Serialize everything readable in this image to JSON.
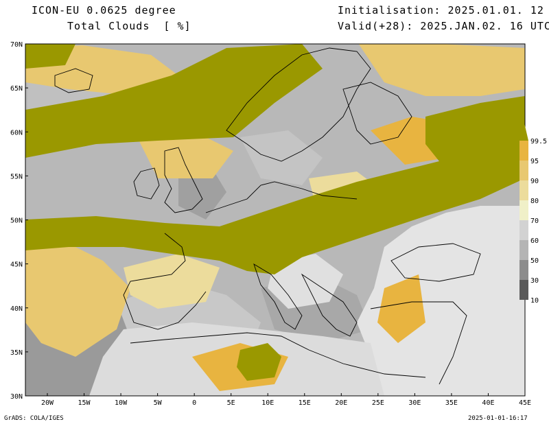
{
  "header": {
    "model": "ICON-EU 0.0625 degree",
    "field": "Total Clouds  [ %]",
    "initialisation": "Initialisation: 2025.01.01. 12 UTC",
    "valid": "Valid(+28): 2025.JAN.02. 16 UTC"
  },
  "footer": {
    "credit": "GrADS: COLA/IGES",
    "timestamp": "2025-01-01-16:17"
  },
  "map": {
    "lat_labels": [
      "70N",
      "65N",
      "60N",
      "55N",
      "50N",
      "45N",
      "40N",
      "35N",
      "30N"
    ],
    "lon_labels": [
      "20W",
      "15W",
      "10W",
      "5W",
      "0",
      "5E",
      "10E",
      "15E",
      "20E",
      "25E",
      "30E",
      "35E",
      "40E",
      "45E"
    ]
  },
  "legend": {
    "levels": [
      "10",
      "30",
      "50",
      "60",
      "70",
      "80",
      "90",
      "95",
      "99.5"
    ],
    "colors": [
      "#5a5a5a",
      "#8c8c8c",
      "#b4b4b4",
      "#d2d2d2",
      "#f0f0c8",
      "#ecdc9c",
      "#e8c870",
      "#e8b440",
      "#9a9800"
    ]
  },
  "colors": {
    "overcast": "#9a9800",
    "high_cloud": "#e8b440",
    "clear_land": "#e6e6e6",
    "border": "#000000"
  }
}
